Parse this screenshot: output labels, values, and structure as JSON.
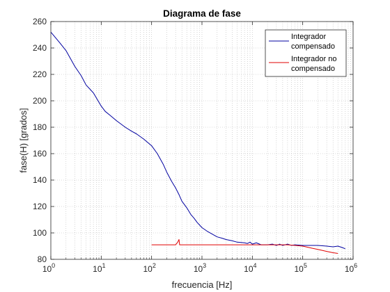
{
  "chart_data": {
    "type": "line",
    "title": "Diagrama de fase",
    "xlabel": "frecuencia [Hz]",
    "ylabel": "fase(H) [grados]",
    "xscale": "log",
    "xlim": [
      1,
      1000000
    ],
    "ylim": [
      80,
      260
    ],
    "grid": true,
    "legend_placement": "top-right",
    "x_ticks": [
      {
        "value": 1,
        "base": "10",
        "exp": "0"
      },
      {
        "value": 10,
        "base": "10",
        "exp": "1"
      },
      {
        "value": 100,
        "base": "10",
        "exp": "2"
      },
      {
        "value": 1000,
        "base": "10",
        "exp": "3"
      },
      {
        "value": 10000,
        "base": "10",
        "exp": "4"
      },
      {
        "value": 100000,
        "base": "10",
        "exp": "5"
      },
      {
        "value": 1000000,
        "base": "10",
        "exp": "6"
      }
    ],
    "y_ticks": [
      80,
      100,
      120,
      140,
      160,
      180,
      200,
      220,
      240,
      260
    ],
    "series": [
      {
        "name": [
          "Integrador",
          "compensado"
        ],
        "color": "#0000a0",
        "points": [
          [
            1,
            252
          ],
          [
            1.5,
            244
          ],
          [
            2,
            238
          ],
          [
            3,
            226
          ],
          [
            4,
            219
          ],
          [
            5,
            212
          ],
          [
            7,
            206
          ],
          [
            10,
            196
          ],
          [
            12,
            192
          ],
          [
            15,
            189
          ],
          [
            20,
            185
          ],
          [
            30,
            180
          ],
          [
            40,
            177
          ],
          [
            50,
            175
          ],
          [
            70,
            171
          ],
          [
            100,
            166
          ],
          [
            130,
            160
          ],
          [
            170,
            152
          ],
          [
            200,
            146
          ],
          [
            250,
            139
          ],
          [
            300,
            134
          ],
          [
            350,
            129
          ],
          [
            400,
            124
          ],
          [
            500,
            119
          ],
          [
            600,
            114
          ],
          [
            700,
            111
          ],
          [
            800,
            108
          ],
          [
            1000,
            104
          ],
          [
            1300,
            101
          ],
          [
            1700,
            98.5
          ],
          [
            2000,
            97
          ],
          [
            2500,
            96
          ],
          [
            3000,
            95
          ],
          [
            4000,
            94
          ],
          [
            5000,
            93
          ],
          [
            7000,
            92.5
          ],
          [
            8000,
            92
          ],
          [
            9000,
            93
          ],
          [
            10000,
            91.5
          ],
          [
            12000,
            92.5
          ],
          [
            15000,
            91
          ],
          [
            20000,
            91
          ],
          [
            25000,
            91.5
          ],
          [
            30000,
            90.5
          ],
          [
            35000,
            91.5
          ],
          [
            40000,
            90.5
          ],
          [
            50000,
            91.5
          ],
          [
            60000,
            90.5
          ],
          [
            70000,
            91
          ],
          [
            100000,
            90.5
          ],
          [
            150000,
            90.5
          ],
          [
            200000,
            90.5
          ],
          [
            300000,
            90
          ],
          [
            400000,
            89.5
          ],
          [
            500000,
            90
          ],
          [
            600000,
            89
          ],
          [
            700000,
            88
          ]
        ]
      },
      {
        "name": [
          "Integrador no",
          "compensado"
        ],
        "color": "#e00000",
        "points": [
          [
            100,
            91
          ],
          [
            200,
            91
          ],
          [
            300,
            91
          ],
          [
            330,
            93
          ],
          [
            350,
            95
          ],
          [
            360,
            91
          ],
          [
            500,
            91
          ],
          [
            1000,
            91
          ],
          [
            5000,
            91
          ],
          [
            10000,
            91
          ],
          [
            30000,
            91
          ],
          [
            50000,
            91
          ],
          [
            70000,
            90.5
          ],
          [
            100000,
            90
          ],
          [
            150000,
            88.5
          ],
          [
            200000,
            87.5
          ],
          [
            300000,
            86
          ],
          [
            400000,
            85
          ],
          [
            500000,
            84.5
          ]
        ]
      }
    ]
  }
}
